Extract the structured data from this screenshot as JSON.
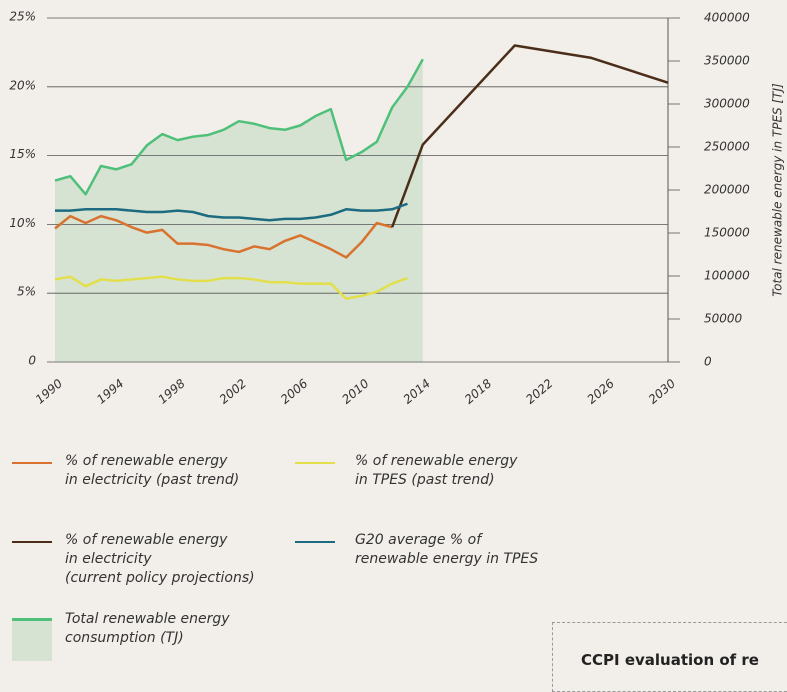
{
  "chart_data": {
    "type": "line",
    "y2_label": "Total renewable energy in TPES [TJ]",
    "xlim": [
      1990,
      2030
    ],
    "xticks": [
      1990,
      1994,
      1998,
      2002,
      2006,
      2010,
      2014,
      2018,
      2022,
      2026,
      2030
    ],
    "ylim": [
      0,
      25
    ],
    "yticks": [
      0,
      {
        "value": 5,
        "label": "5%"
      },
      {
        "value": 10,
        "label": "10%"
      },
      {
        "value": 15,
        "label": "15%"
      },
      {
        "value": 20,
        "label": "20%"
      },
      {
        "value": 25,
        "label": "25%"
      }
    ],
    "y2lim": [
      0,
      400000
    ],
    "y2ticks": [
      0,
      50000,
      100000,
      150000,
      200000,
      250000,
      300000,
      350000,
      400000
    ],
    "grid": true,
    "series": [
      {
        "name": "% of renewable energy\nin electricity (past trend)",
        "color": "#d9722e",
        "x": [
          1990,
          1991,
          1992,
          1993,
          1994,
          1995,
          1996,
          1997,
          1998,
          1999,
          2000,
          2001,
          2002,
          2003,
          2004,
          2005,
          2006,
          2007,
          2008,
          2009,
          2010,
          2011,
          2012
        ],
        "values": [
          9.7,
          10.6,
          10.1,
          10.6,
          10.3,
          9.8,
          9.4,
          9.6,
          8.6,
          8.6,
          8.5,
          8.2,
          8.0,
          8.4,
          8.2,
          8.8,
          9.2,
          8.7,
          8.2,
          7.6,
          8.7,
          10.1,
          9.8
        ]
      },
      {
        "name": "% of renewable energy\nin TPES (past trend)",
        "color": "#e3df4a",
        "x": [
          1990,
          1991,
          1992,
          1993,
          1994,
          1995,
          1996,
          1997,
          1998,
          1999,
          2000,
          2001,
          2002,
          2003,
          2004,
          2005,
          2006,
          2007,
          2008,
          2009,
          2010,
          2011,
          2012,
          2013
        ],
        "values": [
          6.0,
          6.2,
          5.5,
          6.0,
          5.9,
          6.0,
          6.1,
          6.2,
          6.0,
          5.9,
          5.9,
          6.1,
          6.1,
          6.0,
          5.8,
          5.8,
          5.7,
          5.7,
          5.7,
          4.6,
          4.8,
          5.1,
          5.7,
          6.1
        ]
      },
      {
        "name": "% of renewable energy\nin electricity\n(current policy projections)",
        "color": "#4a2e1a",
        "x": [
          2012,
          2014,
          2020,
          2025,
          2030
        ],
        "values": [
          9.8,
          15.8,
          23.0,
          22.1,
          20.3
        ]
      },
      {
        "name": "G20 average % of\nrenewable energy in TPES",
        "color": "#1d6b80",
        "x": [
          1990,
          1991,
          1992,
          1993,
          1994,
          1995,
          1996,
          1997,
          1998,
          1999,
          2000,
          2001,
          2002,
          2003,
          2004,
          2005,
          2006,
          2007,
          2008,
          2009,
          2010,
          2011,
          2012,
          2013
        ],
        "values": [
          11.0,
          11.0,
          11.1,
          11.1,
          11.1,
          11.0,
          10.9,
          10.9,
          11.0,
          10.9,
          10.6,
          10.5,
          10.5,
          10.4,
          10.3,
          10.4,
          10.4,
          10.5,
          10.7,
          11.1,
          11.0,
          11.0,
          11.1,
          11.5
        ]
      },
      {
        "name": "Total renewable energy\nconsumption (TJ)",
        "color": "#4fc07a",
        "fill": "#d6e3d2",
        "axis": "y2",
        "x": [
          1990,
          1991,
          1992,
          1993,
          1994,
          1995,
          1996,
          1997,
          1998,
          1999,
          2000,
          2001,
          2002,
          2003,
          2004,
          2005,
          2006,
          2007,
          2008,
          2009,
          2010,
          2011,
          2012,
          2013,
          2014
        ],
        "values": [
          211000,
          216000,
          195000,
          228000,
          224000,
          230000,
          252000,
          265000,
          258000,
          262000,
          264000,
          270000,
          280000,
          277000,
          272000,
          270000,
          275000,
          286000,
          294000,
          235000,
          244000,
          256000,
          296000,
          320000,
          352000
        ]
      }
    ],
    "annotations": [
      {
        "text": "CCPI evaluation of re"
      }
    ]
  }
}
